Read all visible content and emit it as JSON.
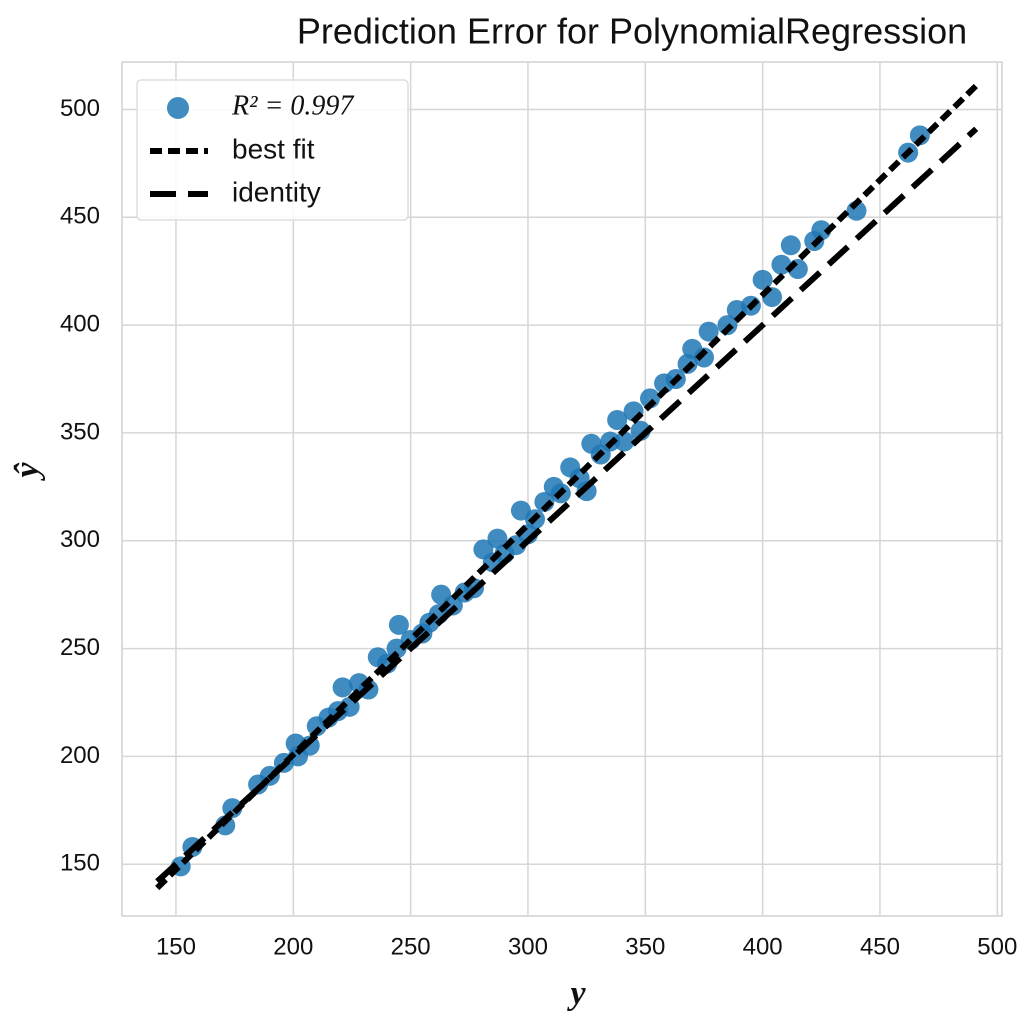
{
  "chart_data": {
    "type": "scatter",
    "title": "Prediction Error for PolynomialRegression",
    "xlabel": "y",
    "ylabel": "ŷ",
    "xlim": [
      127,
      502
    ],
    "ylim": [
      126,
      522
    ],
    "xticks": [
      150,
      200,
      250,
      300,
      350,
      400,
      450,
      500
    ],
    "yticks": [
      150,
      200,
      250,
      300,
      350,
      400,
      450,
      500
    ],
    "grid": true,
    "legend": "upper left",
    "series": [
      {
        "name": "R² = 0.997",
        "color": "#1f77b4",
        "x": [
          152,
          157,
          171,
          174,
          185,
          190,
          196,
          201,
          202,
          207,
          210,
          215,
          219,
          221,
          224,
          228,
          232,
          236,
          240,
          244,
          245,
          250,
          255,
          258,
          262,
          263,
          268,
          273,
          277,
          281,
          285,
          287,
          290,
          295,
          297,
          300,
          303,
          307,
          311,
          314,
          318,
          322,
          325,
          327,
          331,
          335,
          338,
          341,
          345,
          348,
          352,
          358,
          363,
          368,
          370,
          375,
          377,
          385,
          389,
          395,
          400,
          404,
          408,
          412,
          415,
          422,
          425,
          440,
          462,
          467
        ],
        "y": [
          149,
          158,
          168,
          176,
          187,
          191,
          197,
          206,
          200,
          205,
          214,
          218,
          221,
          232,
          223,
          234,
          231,
          246,
          243,
          250,
          261,
          254,
          257,
          262,
          266,
          275,
          270,
          276,
          278,
          296,
          290,
          301,
          294,
          298,
          314,
          303,
          310,
          318,
          325,
          322,
          334,
          329,
          323,
          345,
          340,
          346,
          356,
          346,
          360,
          351,
          366,
          373,
          375,
          382,
          389,
          385,
          397,
          400,
          407,
          409,
          421,
          413,
          428,
          437,
          426,
          439,
          444,
          453,
          480,
          488
        ]
      }
    ],
    "lines": [
      {
        "name": "best fit",
        "color": "#000000",
        "x": [
          142,
          491
        ],
        "y": [
          139,
          511
        ]
      },
      {
        "name": "identity",
        "color": "#000000",
        "x": [
          142,
          491
        ],
        "y": [
          142,
          491
        ]
      }
    ]
  }
}
